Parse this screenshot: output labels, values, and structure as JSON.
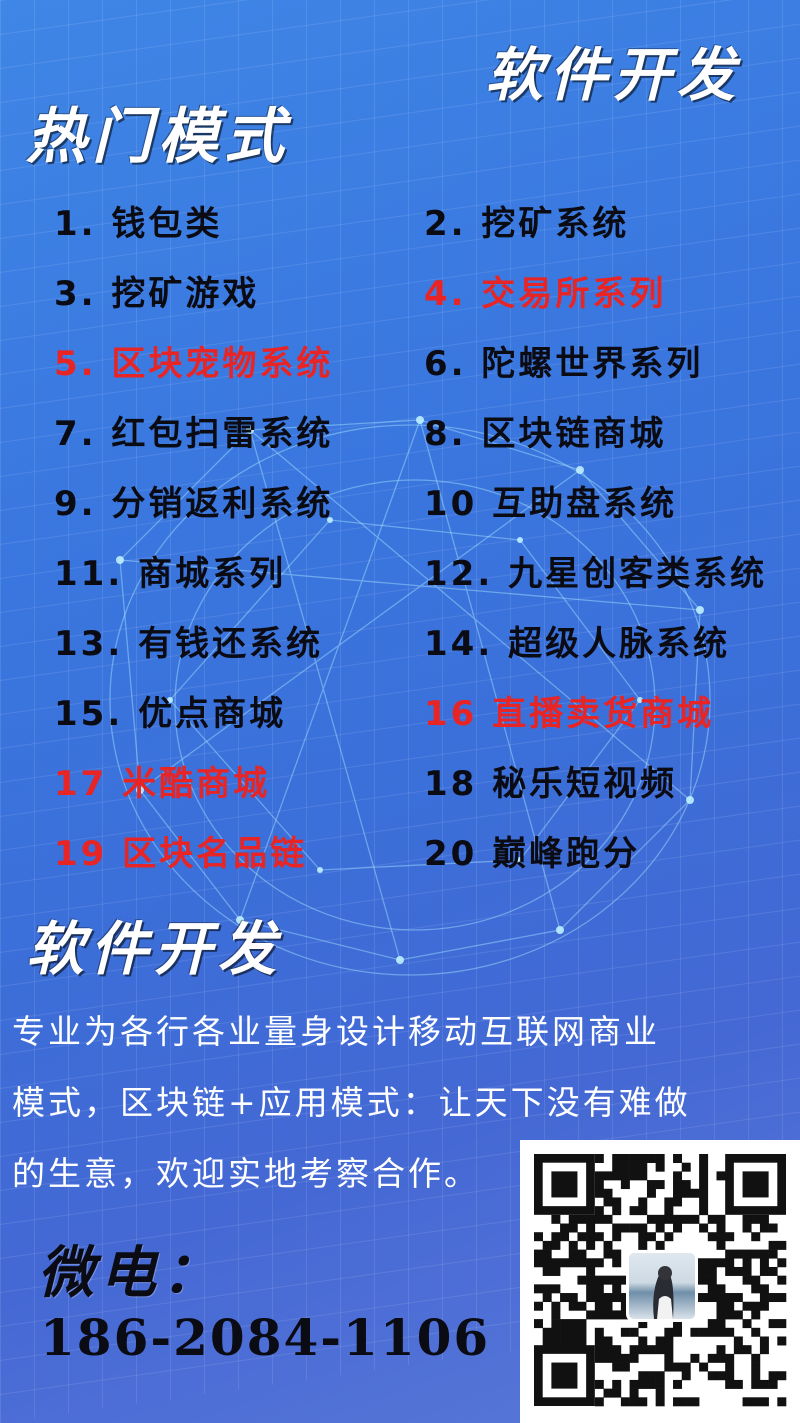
{
  "header": {
    "top_title": "软件开发",
    "hot_title": "热门模式"
  },
  "left_items": [
    {
      "text": "1. 钱包类",
      "red": false
    },
    {
      "text": "3. 挖矿游戏",
      "red": false
    },
    {
      "text": "5. 区块宠物系统",
      "red": true
    },
    {
      "text": "7. 红包扫雷系统",
      "red": false
    },
    {
      "text": "9. 分销返利系统",
      "red": false
    },
    {
      "text": "11. 商城系列",
      "red": false
    },
    {
      "text": "13. 有钱还系统",
      "red": false
    },
    {
      "text": "15. 优点商城",
      "red": false
    },
    {
      "text": "17 米酷商城",
      "red": true
    },
    {
      "text": "19 区块名品链",
      "red": true
    }
  ],
  "right_items": [
    {
      "text": "2. 挖矿系统",
      "red": false
    },
    {
      "text": "4. 交易所系列",
      "red": true
    },
    {
      "text": "6. 陀螺世界系列",
      "red": false
    },
    {
      "text": "8. 区块链商城",
      "red": false
    },
    {
      "text": "10 互助盘系统",
      "red": false
    },
    {
      "text": "12. 九星创客类系统",
      "red": false
    },
    {
      "text": "14.  超级人脉系统",
      "red": false
    },
    {
      "text": "16 直播卖货商城",
      "red": true
    },
    {
      "text": "18 秘乐短视频",
      "red": false
    },
    {
      "text": "20 巅峰跑分",
      "red": false
    }
  ],
  "section": {
    "title": "软件开发",
    "lines": [
      "  专业为各行各业量身设计移动互联网商业",
      "模式，区块链+应用模式：让天下没有难做",
      "的生意，欢迎实地考察合作。"
    ]
  },
  "contact": {
    "label": "微电：",
    "phone": "186-2084-1106"
  },
  "colors": {
    "highlight": "#e82424",
    "text": "#0b0b14",
    "background": "#3b74dc"
  },
  "icons": {
    "qr": "qr-code",
    "avatar": "avatar-photo"
  }
}
